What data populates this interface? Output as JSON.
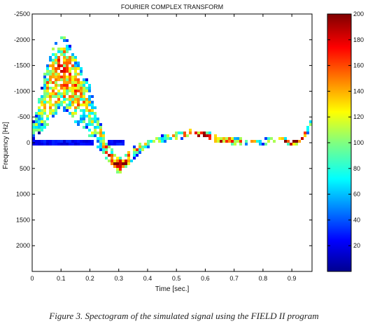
{
  "chart_data": {
    "type": "heatmap",
    "title": "FOURIER COMPLEX TRANSFORM",
    "xlabel": "Time [sec.]",
    "ylabel": "Frequency [Hz]",
    "xlim": [
      0,
      0.97
    ],
    "ylim": [
      -2500,
      2500
    ],
    "y_axis_reversed": true,
    "x_ticks": [
      "0",
      "0.1",
      "0.2",
      "0.3",
      "0.4",
      "0.5",
      "0.6",
      "0.7",
      "0.8",
      "0.9"
    ],
    "y_ticks": [
      "-2500",
      "-2000",
      "-1500",
      "-1000",
      "-500",
      "0",
      "500",
      "1000",
      "1500",
      "2000"
    ],
    "colorbar": {
      "min": 0,
      "max": 200,
      "ticks": [
        "20",
        "40",
        "60",
        "80",
        "100",
        "120",
        "140",
        "160",
        "180",
        "200"
      ],
      "colormap": "jet"
    },
    "ridge": {
      "description_free": true,
      "t": [
        0.0,
        0.02,
        0.05,
        0.08,
        0.1,
        0.12,
        0.15,
        0.18,
        0.2,
        0.22,
        0.25,
        0.28,
        0.3,
        0.32,
        0.35,
        0.38,
        0.4,
        0.45,
        0.5,
        0.55,
        0.6,
        0.65,
        0.7,
        0.75,
        0.8,
        0.85,
        0.88,
        0.9,
        0.93,
        0.95,
        0.97
      ],
      "center_hz": [
        -150,
        -450,
        -900,
        -1250,
        -1350,
        -1300,
        -1050,
        -800,
        -600,
        -300,
        50,
        350,
        450,
        400,
        200,
        80,
        20,
        -80,
        -130,
        -180,
        -150,
        -60,
        -30,
        -20,
        -20,
        -60,
        -30,
        0,
        -50,
        -200,
        -400
      ],
      "halfwidth_hz": [
        150,
        300,
        600,
        700,
        750,
        700,
        650,
        550,
        500,
        350,
        200,
        180,
        170,
        150,
        120,
        90,
        70,
        70,
        70,
        80,
        80,
        70,
        60,
        60,
        60,
        60,
        60,
        60,
        60,
        80,
        100
      ],
      "peak_intensity": [
        60,
        90,
        130,
        140,
        150,
        145,
        135,
        120,
        110,
        100,
        130,
        160,
        185,
        180,
        140,
        110,
        90,
        95,
        120,
        150,
        180,
        170,
        150,
        120,
        110,
        140,
        180,
        175,
        160,
        120,
        80
      ]
    }
  },
  "caption": "Figure 3. Spectogram of the simulated signal using the FIELD II program"
}
